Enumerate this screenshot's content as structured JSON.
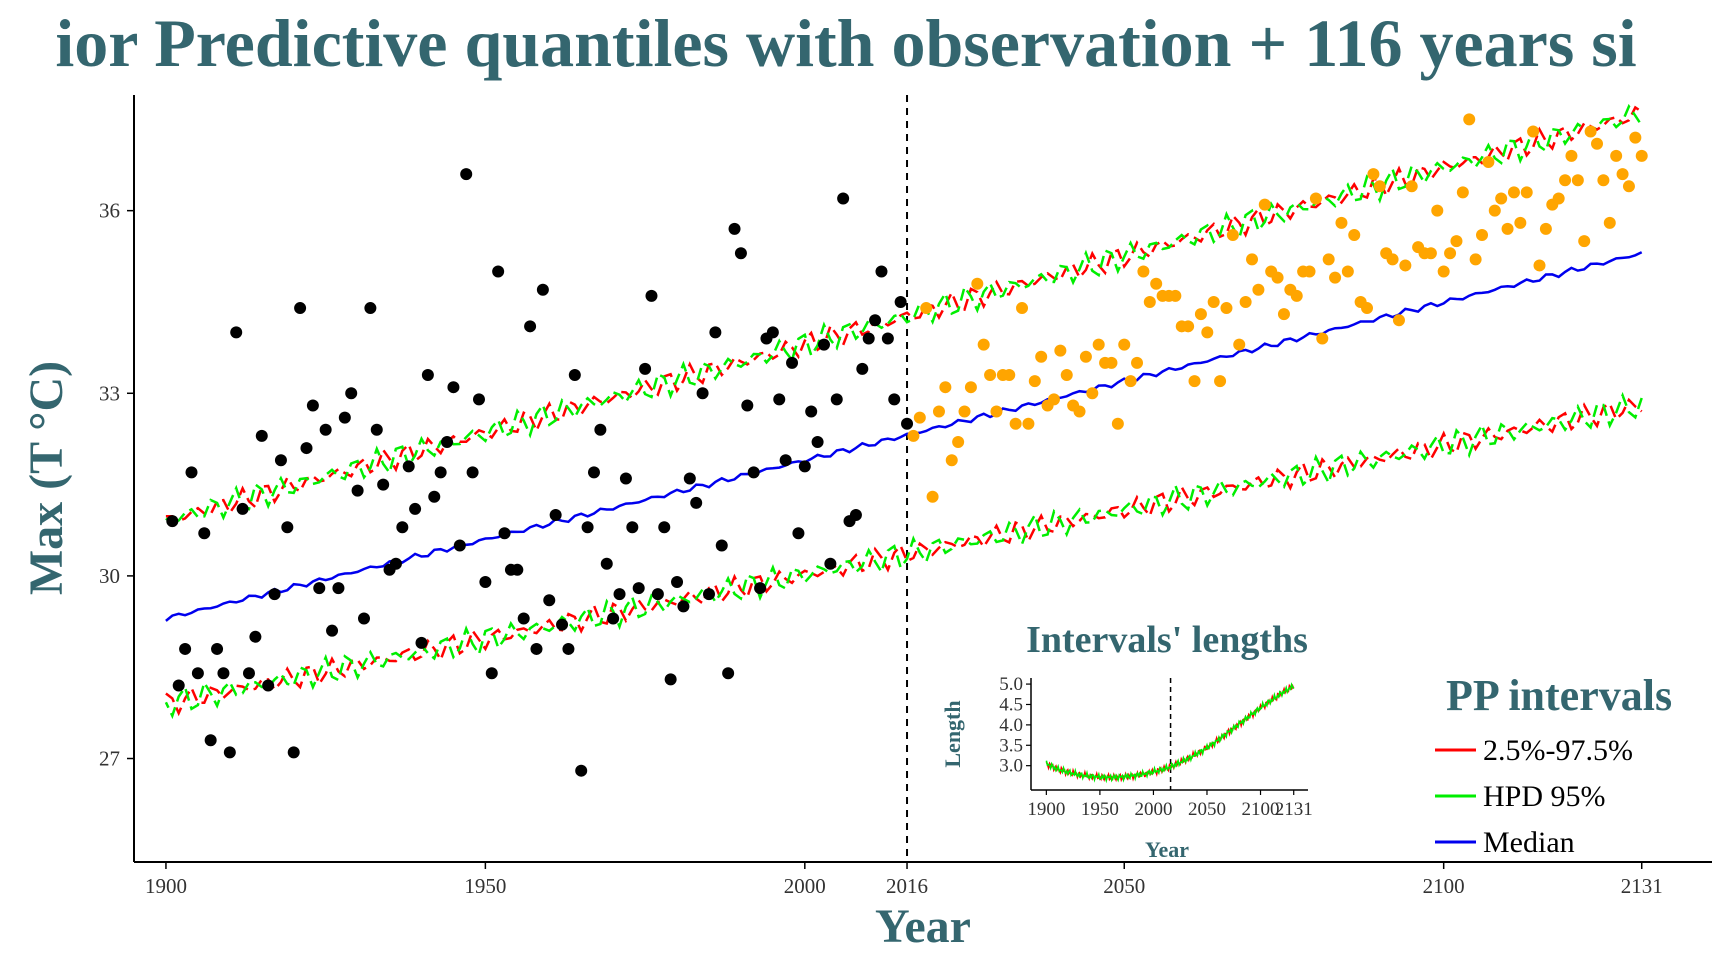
{
  "chart_data": {
    "type": "scatter",
    "title": "ior Predictive quantiles with observation + 116 years si",
    "xlabel": "Year",
    "ylabel": "Max (T °C)",
    "xlim": [
      1895,
      2142
    ],
    "ylim": [
      25.3,
      37.9
    ],
    "x_ticks": [
      1900,
      1950,
      2000,
      2016,
      2050,
      2100,
      2131
    ],
    "y_ticks": [
      27,
      30,
      33,
      36
    ],
    "vline_x": 2016,
    "grid": false,
    "colors": {
      "observed": "#000000",
      "predicted": "#ffa500",
      "quantile": "#ff0000",
      "hpd": "#00ee00",
      "median": "#0000ee",
      "text": "#34666f"
    },
    "observed_points": {
      "x": [
        1901,
        1902,
        1903,
        1904,
        1905,
        1906,
        1907,
        1908,
        1909,
        1910,
        1911,
        1912,
        1913,
        1914,
        1915,
        1916,
        1917,
        1918,
        1919,
        1920,
        1921,
        1922,
        1923,
        1924,
        1925,
        1926,
        1927,
        1928,
        1929,
        1930,
        1931,
        1932,
        1933,
        1934,
        1935,
        1936,
        1937,
        1938,
        1939,
        1940,
        1941,
        1942,
        1943,
        1944,
        1945,
        1946,
        1947,
        1948,
        1949,
        1950,
        1951,
        1952,
        1953,
        1954,
        1955,
        1956,
        1957,
        1958,
        1959,
        1960,
        1961,
        1962,
        1963,
        1964,
        1965,
        1966,
        1967,
        1968,
        1969,
        1970,
        1971,
        1972,
        1973,
        1974,
        1975,
        1976,
        1977,
        1978,
        1979,
        1980,
        1981,
        1982,
        1983,
        1984,
        1985,
        1986,
        1987,
        1988,
        1989,
        1990,
        1991,
        1992,
        1993,
        1994,
        1995,
        1996,
        1997,
        1998,
        1999,
        2000,
        2001,
        2002,
        2003,
        2004,
        2005,
        2006,
        2007,
        2008,
        2009,
        2010,
        2011,
        2012,
        2013,
        2014,
        2015,
        2016
      ],
      "y": [
        30.9,
        28.2,
        28.8,
        31.7,
        28.4,
        30.7,
        27.3,
        28.8,
        28.4,
        27.1,
        34.0,
        31.1,
        28.4,
        29.0,
        32.3,
        28.2,
        29.7,
        31.9,
        30.8,
        27.1,
        34.4,
        32.1,
        32.8,
        29.8,
        32.4,
        29.1,
        29.8,
        32.6,
        33.0,
        31.4,
        29.3,
        34.4,
        32.4,
        31.5,
        30.1,
        30.2,
        30.8,
        31.8,
        31.1,
        28.9,
        33.3,
        31.3,
        31.7,
        32.2,
        33.1,
        30.5,
        36.6,
        31.7,
        32.9,
        29.9,
        28.4,
        35.0,
        30.7,
        30.1,
        30.1,
        29.3,
        34.1,
        28.8,
        34.7,
        29.6,
        31.0,
        29.2,
        28.8,
        33.3,
        26.8,
        30.8,
        31.7,
        32.4,
        30.2,
        29.3,
        29.7,
        31.6,
        30.8,
        29.8,
        33.4,
        34.6,
        29.7,
        30.8,
        28.3,
        29.9,
        29.5,
        31.6,
        31.2,
        33.0,
        29.7,
        34.0,
        30.5,
        28.4,
        35.7,
        35.3,
        32.8,
        31.7,
        29.8,
        33.9,
        34.0,
        32.9,
        31.9,
        33.5,
        30.7,
        31.8,
        32.7,
        32.2,
        33.8,
        30.2,
        32.9,
        36.2,
        30.9,
        31.0,
        33.4,
        33.9,
        34.2,
        35.0,
        33.9,
        32.9,
        34.5,
        32.5
      ]
    },
    "predicted_points": {
      "x": [
        2017,
        2018,
        2019,
        2020,
        2021,
        2022,
        2023,
        2024,
        2025,
        2026,
        2027,
        2028,
        2029,
        2030,
        2031,
        2032,
        2033,
        2034,
        2035,
        2036,
        2037,
        2038,
        2039,
        2040,
        2041,
        2042,
        2043,
        2044,
        2045,
        2046,
        2047,
        2048,
        2049,
        2050,
        2051,
        2052,
        2053,
        2054,
        2055,
        2056,
        2057,
        2058,
        2059,
        2060,
        2061,
        2062,
        2063,
        2064,
        2065,
        2066,
        2067,
        2068,
        2069,
        2070,
        2071,
        2072,
        2073,
        2074,
        2075,
        2076,
        2077,
        2078,
        2079,
        2080,
        2081,
        2082,
        2083,
        2084,
        2085,
        2086,
        2087,
        2088,
        2089,
        2090,
        2091,
        2092,
        2093,
        2094,
        2095,
        2096,
        2097,
        2098,
        2099,
        2100,
        2101,
        2102,
        2103,
        2104,
        2105,
        2106,
        2107,
        2108,
        2109,
        2110,
        2111,
        2112,
        2113,
        2114,
        2115,
        2116,
        2117,
        2118,
        2119,
        2120,
        2121,
        2122,
        2123,
        2124,
        2125,
        2126,
        2127,
        2128,
        2129,
        2130,
        2131
      ],
      "y": [
        32.3,
        32.6,
        34.4,
        31.3,
        32.7,
        33.1,
        31.9,
        32.2,
        32.7,
        33.1,
        34.8,
        33.8,
        33.3,
        32.7,
        33.3,
        33.3,
        32.5,
        34.4,
        32.5,
        33.2,
        33.6,
        32.8,
        32.9,
        33.7,
        33.3,
        32.8,
        32.7,
        33.6,
        33.0,
        33.8,
        33.5,
        33.5,
        32.5,
        33.8,
        33.2,
        33.5,
        35.0,
        34.5,
        34.8,
        34.6,
        34.6,
        34.6,
        34.1,
        34.1,
        33.2,
        34.3,
        34.0,
        34.5,
        33.2,
        34.4,
        35.6,
        33.8,
        34.5,
        35.2,
        34.7,
        36.1,
        35.0,
        34.9,
        34.3,
        34.7,
        34.6,
        35.0,
        35.0,
        36.2,
        33.9,
        35.2,
        34.9,
        35.8,
        35.0,
        35.6,
        34.5,
        34.4,
        36.6,
        36.4,
        35.3,
        35.2,
        34.2,
        35.1,
        36.4,
        35.4,
        35.3,
        35.3,
        36.0,
        35.0,
        35.3,
        35.5,
        36.3,
        37.5,
        35.2,
        35.6,
        36.8,
        36.0,
        36.2,
        35.7,
        36.3,
        35.8,
        36.3,
        37.3,
        35.1,
        35.7,
        36.1,
        36.2,
        36.5,
        36.9,
        36.5,
        35.5,
        37.3,
        37.1,
        36.5,
        35.8,
        36.9,
        36.6,
        36.4,
        37.2,
        36.9
      ]
    },
    "series": [
      {
        "name": "2.5%-97.5%",
        "color": "#ff0000",
        "lower_start": 27.9,
        "lower_end": 32.8,
        "upper_start": 30.9,
        "upper_end": 37.6
      },
      {
        "name": "HPD 95%",
        "color": "#00ee00",
        "lower_start": 27.9,
        "lower_end": 32.8,
        "upper_start": 30.9,
        "upper_end": 37.6
      },
      {
        "name": "Median",
        "color": "#0000ee",
        "start": 29.3,
        "end": 35.3
      }
    ],
    "legend": {
      "title": "PP intervals",
      "placement": "bottom-right",
      "items": [
        "2.5%-97.5%",
        "HPD 95%",
        "Median"
      ]
    },
    "inset": {
      "title": "Intervals' lengths",
      "xlabel": "Year",
      "ylabel": "Length",
      "xlim": [
        1895,
        2135
      ],
      "ylim": [
        2.6,
        5.1
      ],
      "x_ticks": [
        1900,
        1950,
        2000,
        2050,
        2100,
        2131
      ],
      "y_ticks": [
        3.0,
        3.5,
        4.0,
        4.5,
        5.0
      ],
      "y_tick_labels": [
        "3.0",
        "3.5",
        "4.0",
        "4.5",
        "5.0"
      ],
      "vline_x": 2016,
      "curve": {
        "x": [
          1900,
          1910,
          1920,
          1930,
          1940,
          1950,
          1960,
          1970,
          1980,
          1990,
          2000,
          2010,
          2016,
          2020,
          2030,
          2040,
          2050,
          2060,
          2070,
          2080,
          2090,
          2100,
          2110,
          2120,
          2131
        ],
        "y": [
          3.05,
          2.92,
          2.84,
          2.78,
          2.74,
          2.72,
          2.71,
          2.72,
          2.75,
          2.79,
          2.85,
          2.92,
          2.97,
          3.02,
          3.14,
          3.28,
          3.44,
          3.62,
          3.82,
          4.02,
          4.22,
          4.42,
          4.6,
          4.78,
          4.95
        ]
      }
    }
  }
}
